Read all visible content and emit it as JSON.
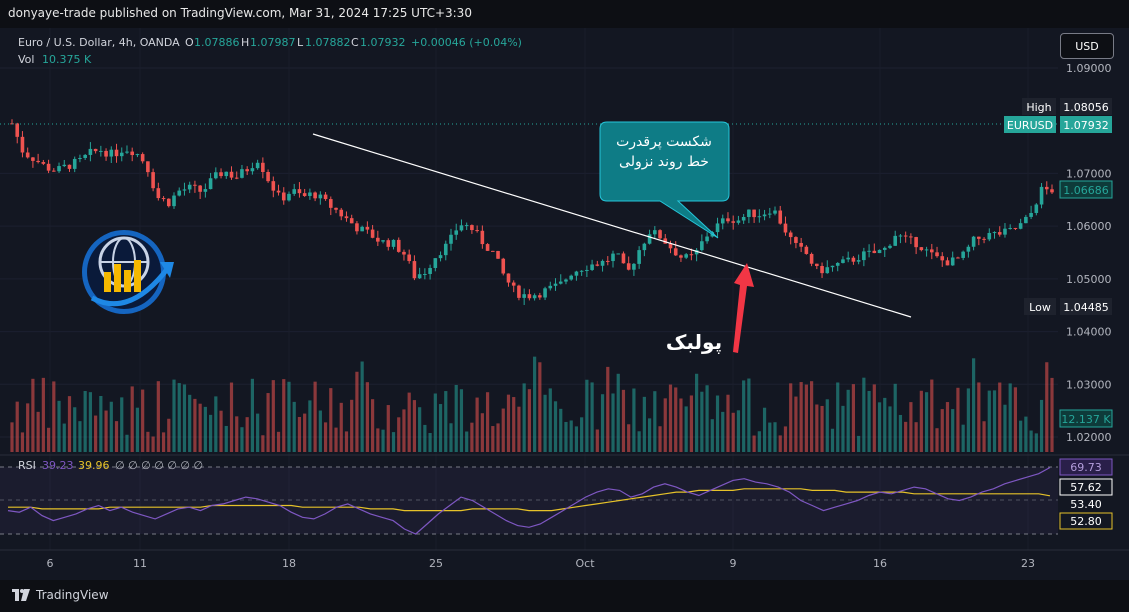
{
  "header": {
    "published": "donyaye-trade published on TradingView.com, Mar 31, 2024 17:25 UTC+3:30"
  },
  "legend": {
    "symbol": "Euro / U.S. Dollar, 4h, OANDA",
    "o_label": "O",
    "o": "1.07886",
    "h_label": "H",
    "h": "1.07987",
    "l_label": "L",
    "l": "1.07882",
    "c_label": "C",
    "c": "1.07932",
    "change": "+0.00046 (+0.04%)",
    "vol_label": "Vol",
    "vol": "10.375 K"
  },
  "currency_button": "USD",
  "price_axis": {
    "ticks": [
      "1.09000",
      "1.07000",
      "1.06000",
      "1.05000",
      "1.04000",
      "1.03000",
      "1.02000"
    ],
    "tick_values": [
      1.09,
      1.07,
      1.06,
      1.05,
      1.04,
      1.03,
      1.02
    ],
    "high_label": "High",
    "high_value": "1.08056",
    "symbol_label": "EURUSD",
    "last_value": "1.07932",
    "last_bar_value": "1.06686",
    "low_label": "Low",
    "low_value": "1.04485",
    "volume_value": "12.137 K"
  },
  "rsi": {
    "label": "RSI",
    "value1": "39.23",
    "value2": "39.96",
    "placeholders": "∅ ∅ ∅ ∅ ∅ ∅ ∅",
    "axis_labels": [
      "69.73",
      "57.62",
      "53.40",
      "52.80"
    ]
  },
  "time_axis": {
    "labels": [
      "6",
      "11",
      "18",
      "25",
      "Oct",
      "9",
      "16",
      "23"
    ]
  },
  "annotations": {
    "callout_line1": "شکست پرقدرت",
    "callout_line2": "خط روند نزولی",
    "pullback": "پولبک"
  },
  "footer": {
    "brand": "TradingView"
  },
  "colors": {
    "up": "#26a69a",
    "down": "#ef5350",
    "background": "#131722",
    "rsi_line": "#7e57c2",
    "rsi_ma": "#e6c229",
    "callout": "#0e7c86",
    "arrow": "#f23645"
  },
  "chart_data": {
    "type": "candlestick",
    "title": "Euro / U.S. Dollar, 4h, OANDA",
    "ylim": [
      1.015,
      1.0955
    ],
    "y_ticks": [
      1.02,
      1.03,
      1.04,
      1.05,
      1.06,
      1.07,
      1.09
    ],
    "x_ticks": [
      "6",
      "11",
      "18",
      "25",
      "Oct",
      "9",
      "16",
      "23"
    ],
    "close_path": [
      1.0795,
      1.074,
      1.0728,
      1.0712,
      1.0705,
      1.0715,
      1.0722,
      1.0738,
      1.0745,
      1.0735,
      1.0748,
      1.0742,
      1.0718,
      1.0655,
      1.0645,
      1.0668,
      1.0672,
      1.0665,
      1.069,
      1.0705,
      1.0692,
      1.0708,
      1.0728,
      1.0685,
      1.065,
      1.0668,
      1.0655,
      1.0662,
      1.0645,
      1.063,
      1.0612,
      1.0595,
      1.0585,
      1.057,
      1.0568,
      1.055,
      1.0505,
      1.0515,
      1.0548,
      1.0565,
      1.0605,
      1.0598,
      1.0572,
      1.055,
      1.0505,
      1.0475,
      1.0468,
      1.0472,
      1.048,
      1.0488,
      1.0512,
      1.0522,
      1.0528,
      1.0532,
      1.0548,
      1.0508,
      1.0552,
      1.059,
      1.058,
      1.0558,
      1.0538,
      1.0542,
      1.058,
      1.06,
      1.0615,
      1.0612,
      1.0625,
      1.0622,
      1.0635,
      1.0598,
      1.0562,
      1.0548,
      1.0515,
      1.052,
      1.0528,
      1.0535,
      1.0545,
      1.0548,
      1.0555,
      1.0585,
      1.0572,
      1.0568,
      1.0548,
      1.0535,
      1.0532,
      1.0542,
      1.0572,
      1.0582,
      1.0585,
      1.0588,
      1.0598,
      1.0618,
      1.0668,
      1.06686
    ],
    "high": 1.08056,
    "low": 1.04485,
    "last": 1.07932,
    "volume_last": "12.137 K",
    "rsi": {
      "values": [
        44,
        43,
        46,
        41,
        38,
        40,
        42,
        45,
        47,
        44,
        46,
        43,
        41,
        39,
        42,
        45,
        46,
        44,
        47,
        48,
        50,
        52,
        51,
        49,
        47,
        43,
        40,
        39,
        42,
        46,
        48,
        45,
        42,
        40,
        38,
        33,
        30,
        36,
        42,
        47,
        52,
        50,
        46,
        42,
        38,
        35,
        34,
        36,
        40,
        44,
        48,
        52,
        55,
        57,
        56,
        52,
        54,
        58,
        60,
        58,
        55,
        53,
        56,
        59,
        62,
        63,
        61,
        60,
        58,
        55,
        50,
        47,
        44,
        46,
        48,
        50,
        53,
        55,
        54,
        56,
        58,
        57,
        54,
        51,
        50,
        52,
        55,
        57,
        60,
        62,
        64,
        66,
        69.73
      ],
      "ma": [
        46,
        46,
        46,
        45,
        45,
        45,
        45,
        45,
        45,
        46,
        46,
        46,
        46,
        46,
        46,
        46,
        46,
        46,
        47,
        47,
        47,
        47,
        47,
        47,
        47,
        47,
        46,
        46,
        46,
        46,
        46,
        46,
        45,
        45,
        45,
        44,
        44,
        44,
        44,
        44,
        44,
        45,
        45,
        45,
        45,
        45,
        44,
        44,
        44,
        45,
        46,
        47,
        48,
        49,
        50,
        51,
        52,
        53,
        54,
        55,
        55,
        56,
        56,
        56,
        56,
        57,
        57,
        57,
        57,
        57,
        57,
        56,
        56,
        56,
        55,
        55,
        55,
        55,
        55,
        55,
        54,
        54,
        54,
        54,
        54,
        54,
        54,
        54,
        54,
        54,
        54,
        54,
        52.8
      ],
      "levels": [
        70,
        50,
        30
      ]
    },
    "trendline": {
      "from": {
        "x": "Sep 19",
        "y": 1.0745
      },
      "to": {
        "x": "Oct 17",
        "y": 1.0435
      }
    }
  }
}
